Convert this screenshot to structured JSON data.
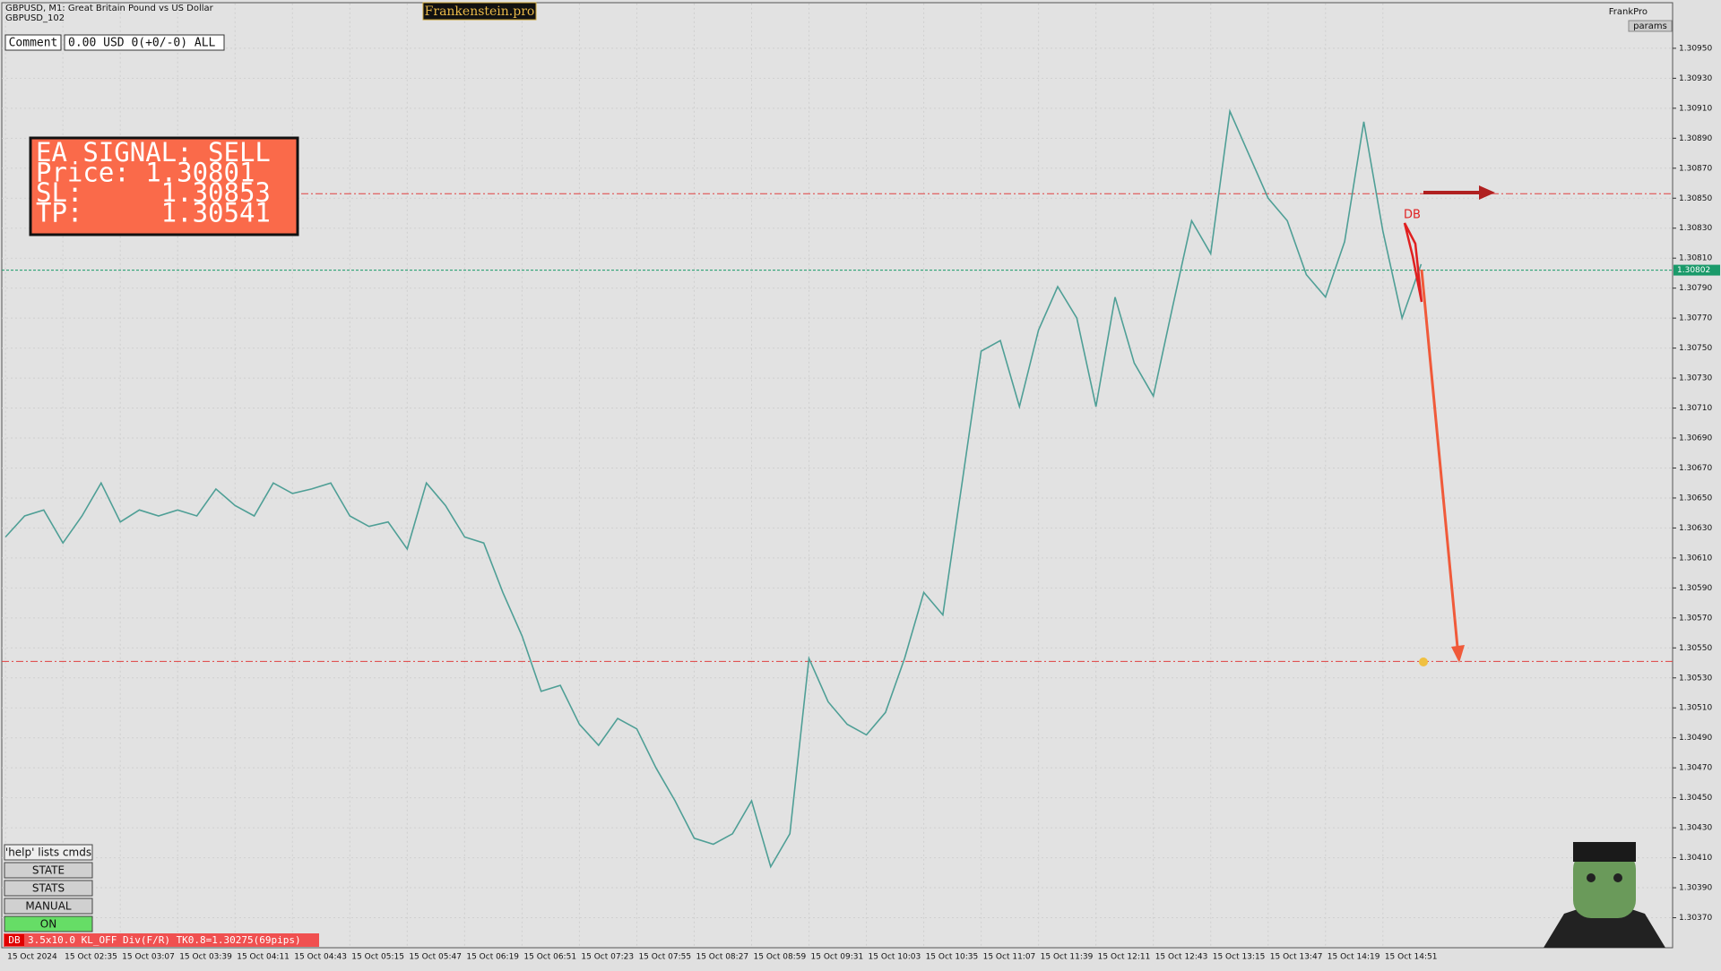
{
  "header": {
    "symbol": "GBPUSD, M1:  Great Britain Pound vs US Dollar",
    "sub": "GBPUSD_102",
    "brand": "Frankenstein.pro",
    "user": "FrankPro",
    "params": "params"
  },
  "comment": {
    "label": "Comment",
    "value": "0.00 USD 0(+0/-0) ALL"
  },
  "signal": {
    "lines": [
      "EA SIGNAL: SELL",
      "Price: 1.30801",
      "SL:     1.30853",
      "TP:     1.30541"
    ]
  },
  "marker": "DB",
  "panel": {
    "help": "'help' lists cmds",
    "buttons": [
      "STATE",
      "STATS",
      "MANUAL",
      "ON"
    ]
  },
  "status": {
    "tag": "DB",
    "text": "3.5x10.0 KL_OFF Div(F/R) TK0.8=1.30275(69pips)"
  },
  "chart_data": {
    "type": "line",
    "categories": [
      "15 Oct 2024",
      null,
      null,
      "15 Oct 02:35",
      null,
      null,
      "15 Oct 03:07",
      null,
      null,
      "15 Oct 03:39",
      null,
      null,
      "15 Oct 04:11",
      null,
      null,
      "15 Oct 04:43",
      null,
      null,
      "15 Oct 05:15",
      null,
      null,
      "15 Oct 05:47",
      null,
      null,
      "15 Oct 06:19",
      null,
      null,
      "15 Oct 06:51",
      null,
      null,
      "15 Oct 07:23",
      null,
      null,
      "15 Oct 07:55",
      null,
      null,
      "15 Oct 08:27",
      null,
      null,
      "15 Oct 08:59",
      null,
      null,
      "15 Oct 09:31",
      null,
      null,
      "15 Oct 10:03",
      null,
      null,
      "15 Oct 10:35",
      null,
      null,
      "15 Oct 11:07",
      null,
      null,
      "15 Oct 11:39",
      null,
      null,
      "15 Oct 12:11",
      null,
      null,
      "15 Oct 12:43",
      null,
      null,
      "15 Oct 13:15",
      null,
      null,
      "15 Oct 13:47",
      null,
      null,
      "15 Oct 14:19",
      null,
      null,
      "15 Oct 14:51",
      null,
      null
    ],
    "series": [
      {
        "color": "#4f9f96",
        "values": [
          1.30624,
          1.30638,
          1.30642,
          1.3062,
          1.30638,
          1.3066,
          1.30634,
          1.30642,
          1.30638,
          1.30642,
          1.30638,
          1.30656,
          1.30645,
          1.30638,
          1.3066,
          1.30653,
          1.30656,
          1.3066,
          1.30638,
          1.30631,
          1.30634,
          1.30616,
          1.3066,
          1.30645,
          1.30624,
          1.3062,
          1.30587,
          1.30558,
          1.30521,
          1.30525,
          1.30499,
          1.30485,
          1.30503,
          1.30496,
          1.3047,
          1.30448,
          1.30423,
          1.30419,
          1.30426,
          1.30448,
          1.30404,
          1.30426,
          1.30543,
          1.30514,
          1.30499,
          1.30492,
          1.30507,
          1.30543,
          1.30587,
          1.30572,
          1.3066,
          1.30748,
          1.30755,
          1.30711,
          1.30762,
          1.30791,
          1.3077,
          1.30711,
          1.30784,
          1.3074,
          1.30718,
          1.30777,
          1.30835,
          1.30813,
          1.30908,
          1.30879,
          1.3085,
          1.30835,
          1.30799,
          1.30784,
          1.30821,
          1.30901,
          1.30828,
          1.3077,
          1.30806
        ]
      }
    ],
    "ylim": [
      1.3035,
      1.3098
    ],
    "yticks": [
      {
        "value": 1.3037,
        "label": "1.30370"
      },
      {
        "value": 1.3039,
        "label": "1.30390"
      },
      {
        "value": 1.3041,
        "label": "1.30410"
      },
      {
        "value": 1.3043,
        "label": "1.30430"
      },
      {
        "value": 1.3045,
        "label": "1.30450"
      },
      {
        "value": 1.3047,
        "label": "1.30470"
      },
      {
        "value": 1.3049,
        "label": "1.30490"
      },
      {
        "value": 1.3051,
        "label": "1.30510"
      },
      {
        "value": 1.3053,
        "label": "1.30530"
      },
      {
        "value": 1.3055,
        "label": "1.30550"
      },
      {
        "value": 1.3057,
        "label": "1.30570"
      },
      {
        "value": 1.3059,
        "label": "1.30590"
      },
      {
        "value": 1.3061,
        "label": "1.30610"
      },
      {
        "value": 1.3063,
        "label": "1.30630"
      },
      {
        "value": 1.3065,
        "label": "1.30650"
      },
      {
        "value": 1.3067,
        "label": "1.30670"
      },
      {
        "value": 1.3069,
        "label": "1.30690"
      },
      {
        "value": 1.3071,
        "label": "1.30710"
      },
      {
        "value": 1.3073,
        "label": "1.30730"
      },
      {
        "value": 1.3075,
        "label": "1.30750"
      },
      {
        "value": 1.3077,
        "label": "1.30770"
      },
      {
        "value": 1.3079,
        "label": "1.30790"
      },
      {
        "value": 1.3081,
        "label": "1.30810"
      },
      {
        "value": 1.3083,
        "label": "1.30830"
      },
      {
        "value": 1.3085,
        "label": "1.30850"
      },
      {
        "value": 1.3087,
        "label": "1.30870"
      },
      {
        "value": 1.3089,
        "label": "1.30890"
      },
      {
        "value": 1.3091,
        "label": "1.30910"
      },
      {
        "value": 1.3093,
        "label": "1.30930"
      },
      {
        "value": 1.3095,
        "label": "1.30950"
      }
    ],
    "grid": true,
    "hlines": [
      1.30853,
      1.30802,
      1.30541
    ],
    "hline_colors": [
      "#e04040",
      "#1a9a6a",
      "#e04040"
    ]
  }
}
